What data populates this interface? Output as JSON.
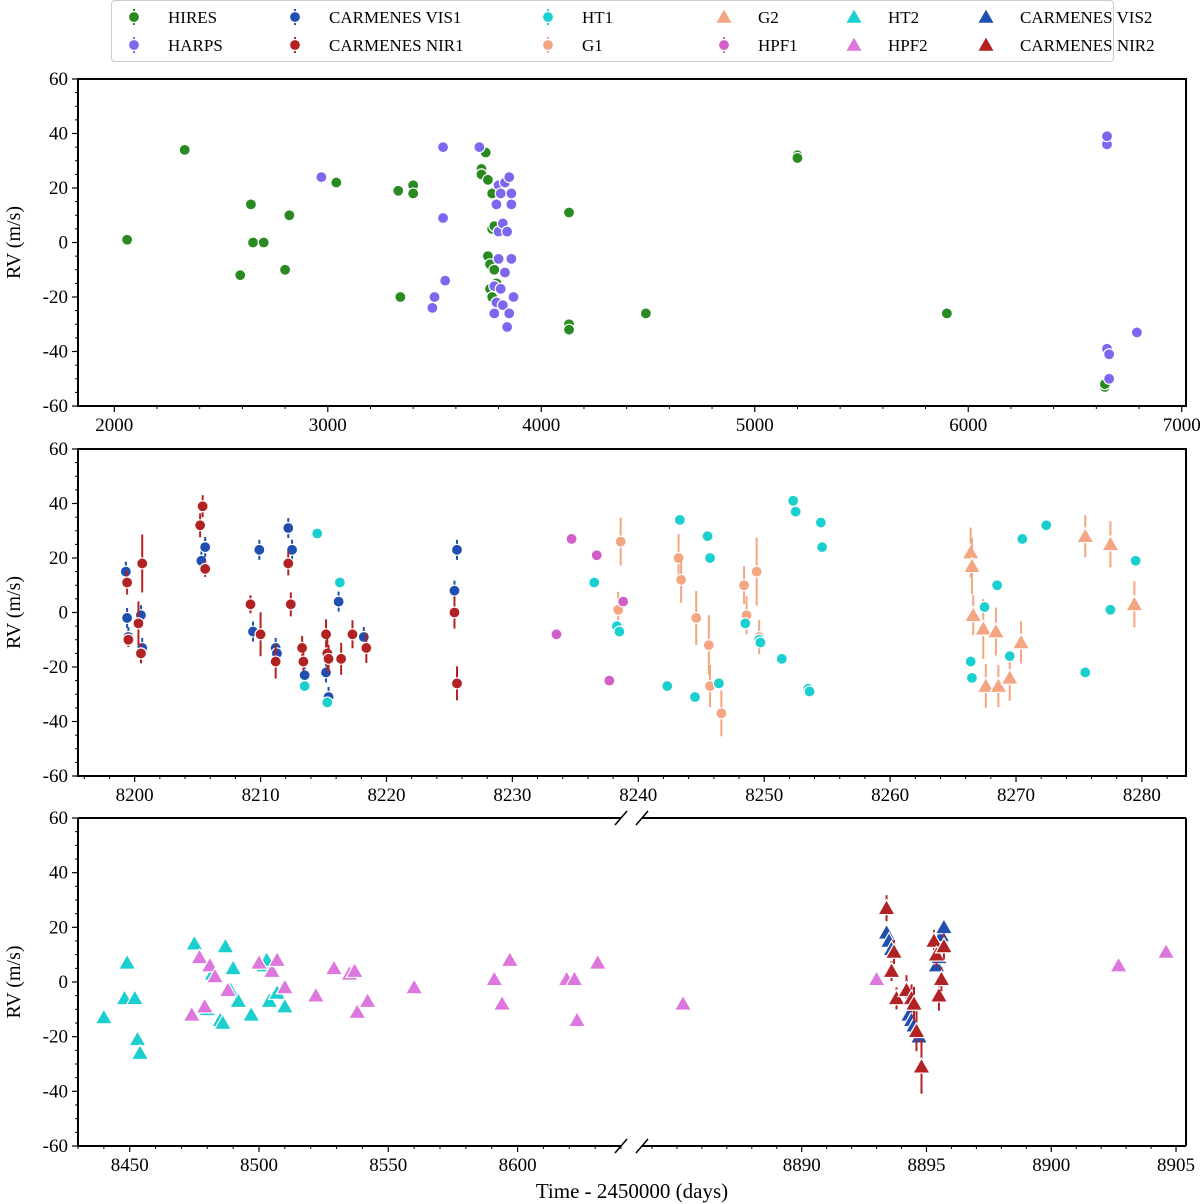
{
  "chart_data": [
    {
      "type": "scatter",
      "panel": "top",
      "title": "",
      "xlabel": "",
      "ylabel": "RV (m/s)",
      "xlim": [
        1830,
        7020
      ],
      "ylim": [
        -60,
        60
      ],
      "xticks": [
        2000,
        3000,
        4000,
        5000,
        6000,
        7000
      ],
      "yticks": [
        -60,
        -40,
        -20,
        0,
        20,
        40,
        60
      ],
      "series": [
        {
          "name": "HIRES",
          "marker": "circle",
          "color": "#2a8a22",
          "x": [
            2060,
            2330,
            2590,
            2640,
            2650,
            2700,
            2800,
            2820,
            3040,
            3330,
            3340,
            3400,
            3400,
            3720,
            3720,
            3740,
            3750,
            3750,
            3760,
            3760,
            3770,
            3770,
            3770,
            3780,
            3780,
            3790,
            4130,
            4130,
            4130,
            4490,
            5200,
            5200,
            5900,
            6640,
            6640
          ],
          "y": [
            1,
            34,
            -12,
            14,
            0,
            0,
            -10,
            10,
            22,
            19,
            -20,
            21,
            18,
            27,
            25,
            33,
            23,
            -5,
            -8,
            -17,
            -20,
            18,
            5,
            -10,
            6,
            -15,
            11,
            -30,
            -32,
            -26,
            32,
            31,
            -26,
            -53,
            -52
          ]
        },
        {
          "name": "HARPS",
          "marker": "circle",
          "color": "#7b68ee",
          "x": [
            2970,
            3490,
            3500,
            3540,
            3540,
            3550,
            3710,
            3780,
            3780,
            3790,
            3790,
            3800,
            3800,
            3800,
            3810,
            3810,
            3820,
            3820,
            3830,
            3830,
            3840,
            3840,
            3850,
            3850,
            3860,
            3860,
            3860,
            3870,
            6650,
            6650,
            6650,
            6660,
            6660,
            6790
          ],
          "y": [
            24,
            -24,
            -20,
            35,
            9,
            -14,
            35,
            -16,
            -26,
            14,
            -22,
            21,
            4,
            -6,
            18,
            -17,
            7,
            -23,
            22,
            -11,
            4,
            -31,
            24,
            -26,
            -6,
            14,
            18,
            -20,
            36,
            39,
            -39,
            -41,
            -50,
            -33
          ]
        }
      ]
    },
    {
      "type": "scatter",
      "panel": "middle",
      "title": "",
      "xlabel": "",
      "ylabel": "RV (m/s)",
      "xlim": [
        8195.5,
        8283.5
      ],
      "ylim": [
        -60,
        60
      ],
      "xticks": [
        8200,
        8210,
        8220,
        8230,
        8240,
        8250,
        8260,
        8270,
        8280
      ],
      "yticks": [
        -60,
        -40,
        -20,
        0,
        20,
        40,
        60
      ],
      "series": [
        {
          "name": "CARMENES VIS1",
          "marker": "circle",
          "color": "#1f4fb0",
          "x": [
            8199.3,
            8199.4,
            8199.5,
            8200.5,
            8200.6,
            8205.3,
            8205.6,
            8209.4,
            8209.9,
            8211.2,
            8211.3,
            8212.2,
            8212.5,
            8213.5,
            8215.2,
            8215.4,
            8216.2,
            8218.2,
            8225.4,
            8225.6
          ],
          "y": [
            15,
            -2,
            -9,
            -1,
            -13,
            19,
            24,
            -7,
            23,
            -13,
            -15,
            31,
            23,
            -23,
            -22,
            -31,
            4,
            -9,
            8,
            23
          ]
        },
        {
          "name": "CARMENES NIR1",
          "marker": "circle",
          "color": "#b22222",
          "x": [
            8199.4,
            8199.5,
            8200.3,
            8200.5,
            8200.6,
            8205.2,
            8205.4,
            8205.6,
            8209.2,
            8210.0,
            8211.2,
            8212.2,
            8212.4,
            8213.3,
            8213.4,
            8215.2,
            8215.3,
            8215.4,
            8216.4,
            8217.3,
            8218.4,
            8225.4,
            8225.6
          ],
          "y": [
            11,
            -10,
            -4,
            -15,
            18,
            32,
            39,
            16,
            3,
            -8,
            -18,
            18,
            3,
            -13,
            -18,
            -8,
            -15,
            -17,
            -17,
            -8,
            -13,
            0,
            -26
          ]
        },
        {
          "name": "HT1",
          "marker": "circle",
          "color": "#1ccfcf",
          "x": [
            8213.5,
            8214.5,
            8215.3,
            8216.3,
            8236.5,
            8238.3,
            8238.5,
            8242.3,
            8243.3,
            8244.5,
            8245.5,
            8245.7,
            8246.4,
            8248.5,
            8249.6,
            8249.7,
            8251.4,
            8252.3,
            8252.5,
            8253.5,
            8253.6,
            8254.5,
            8254.6,
            8266.4,
            8266.5,
            8267.5,
            8268.5,
            8269.5,
            8270.5,
            8272.4,
            8275.5,
            8277.5,
            8279.5
          ],
          "y": [
            -27,
            29,
            -33,
            11,
            11,
            -5,
            -7,
            -27,
            34,
            -31,
            28,
            20,
            -26,
            -4,
            -10,
            -11,
            -17,
            41,
            37,
            -28,
            -29,
            33,
            24,
            -18,
            -24,
            2,
            10,
            -16,
            27,
            32,
            -22,
            1,
            19
          ]
        },
        {
          "name": "G1",
          "marker": "circle",
          "color": "#f4a582",
          "x": [
            8238.4,
            8238.6,
            8243.2,
            8243.4,
            8244.6,
            8245.6,
            8245.7,
            8246.6,
            8248.4,
            8248.6,
            8249.4,
            8249.6
          ],
          "y": [
            1,
            26,
            20,
            12,
            -2,
            -12,
            -27,
            -37,
            10,
            -1,
            15,
            -9
          ]
        },
        {
          "name": "G2",
          "marker": "triangle",
          "color": "#f4a582",
          "x": [
            8266.4,
            8266.5,
            8266.6,
            8267.4,
            8267.6,
            8268.4,
            8268.6,
            8269.5,
            8270.4,
            8275.5,
            8277.5,
            8279.4
          ],
          "y": [
            22,
            17,
            -1,
            -6,
            -27,
            -7,
            -27,
            -24,
            -11,
            28,
            25,
            3
          ]
        },
        {
          "name": "HPF1",
          "marker": "circle",
          "color": "#d25ec8",
          "x": [
            8233.5,
            8234.7,
            8236.7,
            8237.7,
            8238.8
          ],
          "y": [
            -8,
            27,
            21,
            -25,
            4
          ]
        }
      ]
    },
    {
      "type": "scatter",
      "panel": "bottom",
      "title": "",
      "xlabel": "Time - 2450000 (days)",
      "ylabel": "RV (m/s)",
      "broken_x_axis": true,
      "xlim_left": [
        8430,
        8640
      ],
      "xlim_right": [
        8883.6,
        8905.4
      ],
      "xticks_left": [
        8450,
        8500,
        8550,
        8600
      ],
      "xticks_right": [
        8890,
        8895,
        8900,
        8905
      ],
      "ylim": [
        -60,
        60
      ],
      "yticks": [
        -60,
        -40,
        -20,
        0,
        20,
        40,
        60
      ],
      "series": [
        {
          "name": "HT2",
          "marker": "triangle",
          "color": "#1ccfcf",
          "x": [
            8440,
            8448,
            8449,
            8452,
            8453,
            8454,
            8475,
            8480,
            8482,
            8483,
            8485,
            8486,
            8487,
            8489,
            8490,
            8492,
            8497,
            8502,
            8503,
            8504,
            8507,
            8510
          ],
          "y": [
            -13,
            -6,
            7,
            -6,
            -21,
            -26,
            14,
            -10,
            3,
            2,
            -14,
            -15,
            13,
            -3,
            5,
            -7,
            -12,
            6,
            8,
            -7,
            -4,
            -9
          ],
          "x_right": [],
          "y_right": []
        },
        {
          "name": "HPF2",
          "marker": "triangle",
          "color": "#dd77dd",
          "x": [
            8474,
            8477,
            8479,
            8481,
            8483,
            8488,
            8500,
            8505,
            8507,
            8510,
            8522,
            8529,
            8535,
            8537,
            8538,
            8542,
            8560,
            8591,
            8594,
            8597,
            8619,
            8622,
            8623,
            8631,
            8664
          ],
          "y": [
            -12,
            9,
            -9,
            6,
            2,
            -3,
            7,
            4,
            8,
            -2,
            -5,
            5,
            3,
            4,
            -11,
            -7,
            -2,
            1,
            -8,
            8,
            1,
            1,
            -14,
            7,
            -8
          ],
          "x_right": [
            8893.0,
            8902.7,
            8904.6
          ],
          "y_right": [
            1,
            6,
            11
          ]
        },
        {
          "name": "CARMENES VIS2",
          "marker": "triangle",
          "color": "#1f4fb0",
          "x": [],
          "y": [],
          "x_right": [
            8893.4,
            8893.5,
            8893.6,
            8894.3,
            8894.4,
            8894.5,
            8894.6,
            8894.7,
            8895.4,
            8895.5,
            8895.6,
            8895.7
          ],
          "y_right": [
            18,
            15,
            12,
            -12,
            -14,
            -16,
            -18,
            -20,
            6,
            9,
            17,
            20
          ]
        },
        {
          "name": "CARMENES NIR2",
          "marker": "triangle",
          "color": "#b22222",
          "x": [],
          "y": [],
          "x_right": [
            8893.4,
            8893.6,
            8893.7,
            8893.8,
            8894.2,
            8894.4,
            8894.5,
            8894.6,
            8894.8,
            8895.3,
            8895.4,
            8895.5,
            8895.6,
            8895.7
          ],
          "y_right": [
            27,
            4,
            11,
            -6,
            -3,
            -6,
            -8,
            -18,
            -31,
            15,
            10,
            -5,
            1,
            13
          ]
        }
      ]
    }
  ],
  "legend": {
    "items": [
      {
        "label": "HIRES",
        "marker": "circle",
        "color": "#2a8a22"
      },
      {
        "label": "HARPS",
        "marker": "circle",
        "color": "#7b68ee"
      },
      {
        "label": "CARMENES VIS1",
        "marker": "circle",
        "color": "#1f4fb0"
      },
      {
        "label": "CARMENES NIR1",
        "marker": "circle",
        "color": "#b22222"
      },
      {
        "label": "HT1",
        "marker": "circle",
        "color": "#1ccfcf"
      },
      {
        "label": "G1",
        "marker": "circle",
        "color": "#f4a582"
      },
      {
        "label": "G2",
        "marker": "triangle",
        "color": "#f4a582"
      },
      {
        "label": "HPF1",
        "marker": "circle",
        "color": "#d25ec8"
      },
      {
        "label": "HT2",
        "marker": "triangle",
        "color": "#1ccfcf"
      },
      {
        "label": "HPF2",
        "marker": "triangle",
        "color": "#dd77dd"
      },
      {
        "label": "CARMENES VIS2",
        "marker": "triangle",
        "color": "#1f4fb0"
      },
      {
        "label": "CARMENES NIR2",
        "marker": "triangle",
        "color": "#b22222"
      }
    ],
    "placement": "top-center",
    "columns": 6
  },
  "style": {
    "grid": false,
    "axis_color": "#000000"
  }
}
